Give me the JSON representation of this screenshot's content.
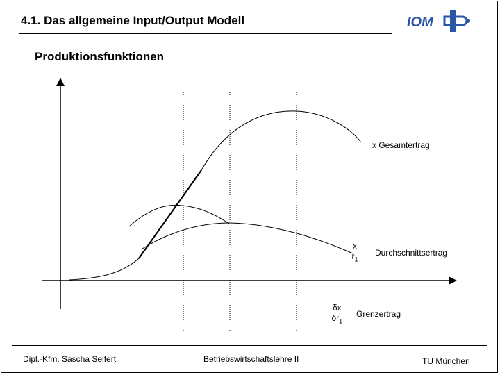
{
  "header": {
    "title": "4.1. Das allgemeine Input/Output Modell",
    "logo_text": "IOM"
  },
  "subtitle": "Produktionsfunktionen",
  "diagram": {
    "gesamtertrag_label": "x Gesamtertrag",
    "durchschnitt_num": "x",
    "durchschnitt_den": "r",
    "durchschnitt_den_sub": "1",
    "durchschnitt_label": "Durchschnittsertrag",
    "grenz_num": "δx",
    "grenz_den": "δr",
    "grenz_den_sub": "1",
    "grenz_label": "Grenzertrag"
  },
  "footer": {
    "author": "Dipl.-Kfm. Sascha Seifert",
    "course": "Betriebswirtschaftslehre II",
    "university": "TU München"
  },
  "colors": {
    "logo_blue": "#2a56a8",
    "line": "#000000"
  }
}
